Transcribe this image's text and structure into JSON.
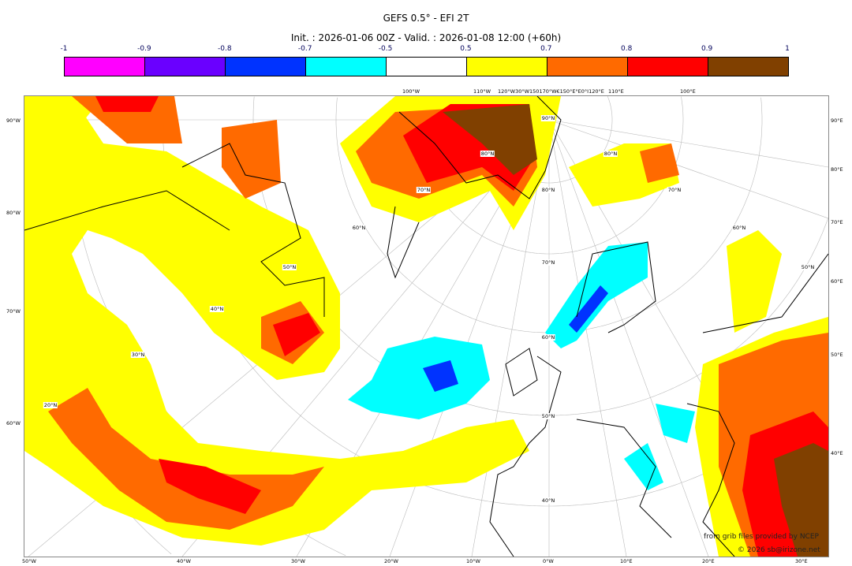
{
  "title": "GEFS 0.5° - EFI 2T",
  "subtitle": "Init. : 2026-01-06 00Z - Valid. : 2026-01-08 12:00 (+60h)",
  "colorbar": {
    "ticks": [
      "-1",
      "-0.9",
      "-0.8",
      "-0.7",
      "-0.5",
      "0.5",
      "0.7",
      "0.8",
      "0.9",
      "1"
    ],
    "colors": [
      "#ff00ff",
      "#6a00ff",
      "#0033ff",
      "#00ffff",
      "#ffffff",
      "#ffff00",
      "#ff6a00",
      "#ff0000",
      "#804000"
    ]
  },
  "axes": {
    "left": [
      "90°W",
      "80°W",
      "70°W",
      "60°W"
    ],
    "right": [
      "90°E",
      "80°E",
      "70°E",
      "60°E",
      "50°E",
      "40°E"
    ],
    "bottom": [
      "50°W",
      "40°W",
      "30°W",
      "20°W",
      "10°W",
      "0°W",
      "10°E",
      "20°E",
      "30°E"
    ],
    "top": [
      "100°W",
      "110°W",
      "120°W30°W150170°W€150°E°E0°I120°E",
      "110°E",
      "100°E"
    ]
  },
  "lat_labels": [
    "90°N",
    "80°N",
    "70°N",
    "60°N",
    "50°N",
    "40°N",
    "30°N",
    "20°N",
    "80°N",
    "70°N",
    "60°N",
    "50°N",
    "80°N",
    "70°N",
    "60°N",
    "50°N",
    "40°N"
  ],
  "credits": {
    "source": "from grib files provided by NCEP",
    "copyright": "© 2026 sb@irizone.net"
  }
}
